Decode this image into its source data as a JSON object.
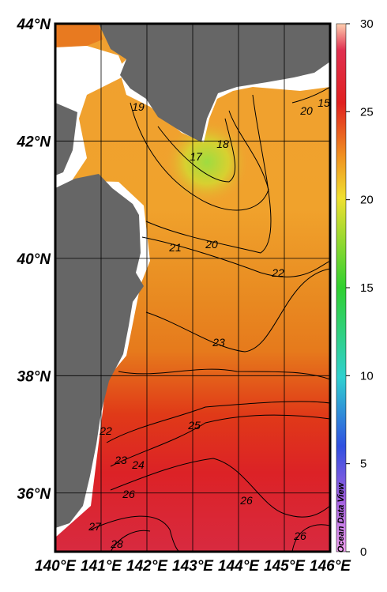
{
  "map": {
    "lon_range": [
      140,
      146
    ],
    "lat_range": [
      35,
      44
    ],
    "lon_ticks": [
      {
        "value": 140,
        "label": "140°E"
      },
      {
        "value": 141,
        "label": "141°E"
      },
      {
        "value": 142,
        "label": "142°E"
      },
      {
        "value": 143,
        "label": "143°E"
      },
      {
        "value": 144,
        "label": "144°E"
      },
      {
        "value": 145,
        "label": "145°E"
      },
      {
        "value": 146,
        "label": "146°E"
      }
    ],
    "lat_ticks": [
      {
        "value": 44,
        "label": "44°N"
      },
      {
        "value": 42,
        "label": "42°N"
      },
      {
        "value": 40,
        "label": "40°N"
      },
      {
        "value": 38,
        "label": "38°N"
      },
      {
        "value": 36,
        "label": "36°N"
      }
    ],
    "colorbar": {
      "range": [
        0,
        30
      ],
      "ticks": [
        0,
        5,
        10,
        15,
        20,
        25,
        30
      ]
    },
    "contour_labels": [
      19,
      20,
      15,
      18,
      17,
      21,
      20,
      22,
      23,
      25,
      22,
      23,
      24,
      26,
      26,
      27,
      28,
      26
    ],
    "credit": "Ocean Data View"
  }
}
